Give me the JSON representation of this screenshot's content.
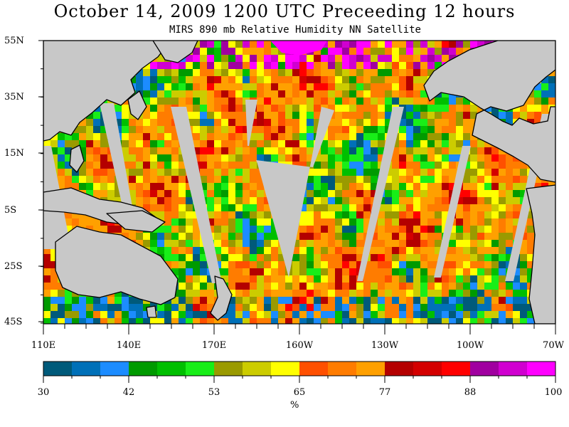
{
  "title": "October 14, 2009  1200 UTC Preceeding 12 hours",
  "subtitle": "MIRS 890 mb Relative Humidity NN Satellite",
  "lat_labels": [
    "55N",
    "35N",
    "15N",
    "5S",
    "25S",
    "45S"
  ],
  "lon_labels": [
    "110E",
    "140E",
    "170E",
    "160W",
    "130W",
    "100W",
    "70W"
  ],
  "colorbar": {
    "tick_labels": [
      "30",
      "42",
      "53",
      "65",
      "77",
      "88",
      "100"
    ],
    "unit": "%",
    "colors": [
      "#005a7a",
      "#0070b8",
      "#1c8cff",
      "#009a00",
      "#00bf00",
      "#18ee18",
      "#9a9a00",
      "#cccc00",
      "#ffff00",
      "#ff5000",
      "#ff7c00",
      "#ffa000",
      "#b40000",
      "#d40000",
      "#ff0000",
      "#a000a0",
      "#d000d0",
      "#ff00ff"
    ]
  },
  "map": {
    "land_color": "#c8c8c8",
    "swath_gap_color": "#c8c8c8"
  }
}
